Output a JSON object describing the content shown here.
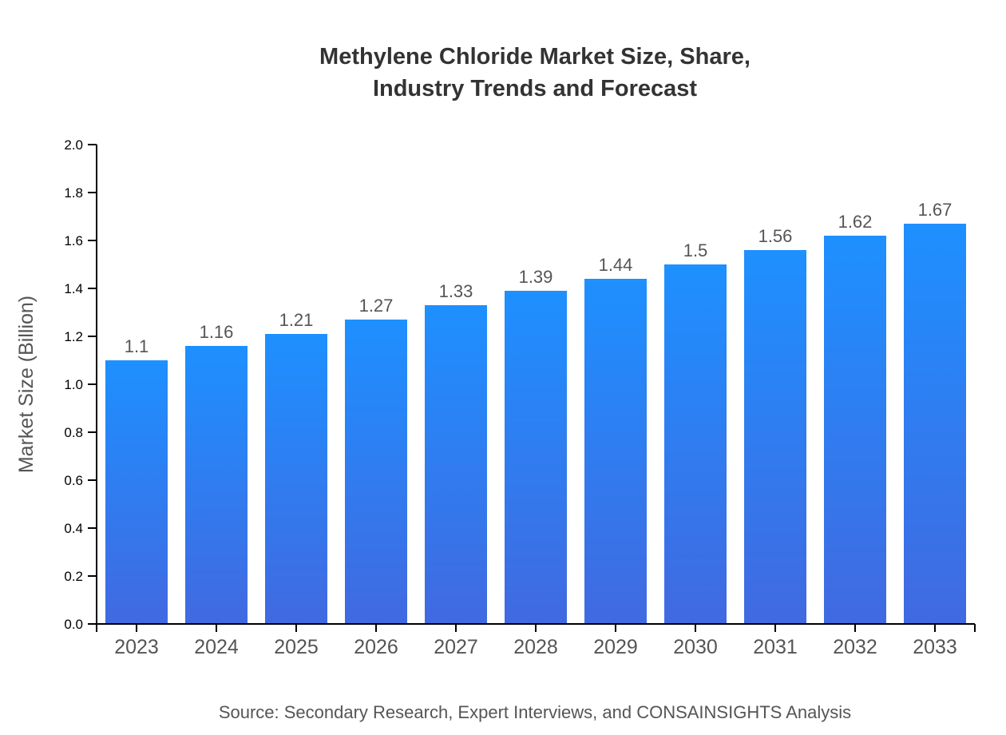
{
  "chart_data": {
    "type": "bar",
    "title_lines": [
      "Methylene Chloride Market Size, Share,",
      "Industry Trends and Forecast"
    ],
    "categories": [
      "2023",
      "2024",
      "2025",
      "2026",
      "2027",
      "2028",
      "2029",
      "2030",
      "2031",
      "2032",
      "2033"
    ],
    "values": [
      1.1,
      1.16,
      1.21,
      1.27,
      1.33,
      1.39,
      1.44,
      1.5,
      1.56,
      1.62,
      1.67
    ],
    "xlabel": "",
    "ylabel": "Market Size (Billion)",
    "ylim": [
      0,
      2.0
    ],
    "yticks": [
      "0.0",
      "0.2",
      "0.4",
      "0.6",
      "0.8",
      "1.0",
      "1.2",
      "1.4",
      "1.6",
      "1.8",
      "2.0"
    ],
    "grid": false,
    "data_labels": true,
    "bar_gradient": {
      "top": "#1e90ff",
      "bottom": "#4169e1"
    },
    "source": "Source: Secondary Research, Expert Interviews, and CONSAINSIGHTS Analysis"
  }
}
